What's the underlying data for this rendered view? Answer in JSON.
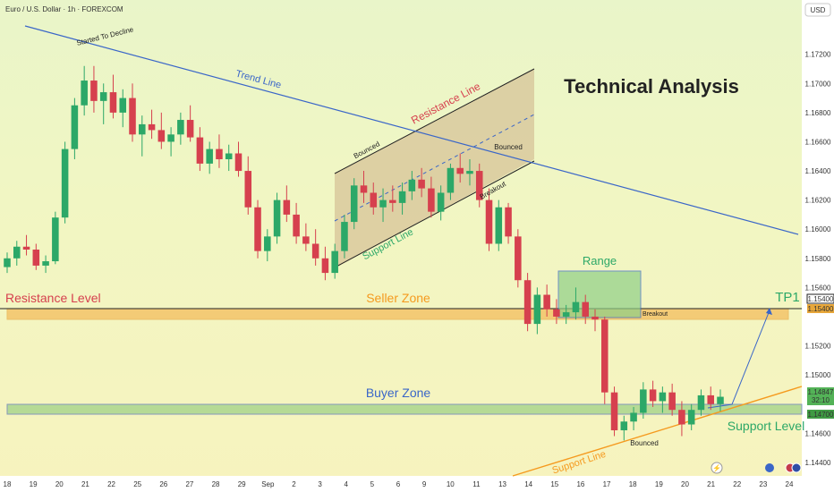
{
  "chart_data": {
    "type": "candlestick",
    "symbol_header": "Euro / U.S. Dollar · 1h · FOREXCOM",
    "currency": "USD",
    "title": "Technical Analysis",
    "y_ticks": [
      "1.17200",
      "1.17000",
      "1.16800",
      "1.16600",
      "1.16400",
      "1.16200",
      "1.16000",
      "1.15800",
      "1.15600",
      "1.15200",
      "1.15000",
      "1.14600",
      "1.14400"
    ],
    "x_ticks": [
      "18",
      "19",
      "20",
      "21",
      "22",
      "25",
      "26",
      "27",
      "28",
      "29",
      "Sep",
      "2",
      "3",
      "4",
      "5",
      "6",
      "9",
      "10",
      "11",
      "13",
      "14",
      "15",
      "16",
      "17",
      "18",
      "19",
      "20",
      "21",
      "22",
      "23",
      "24"
    ],
    "price_tags": {
      "tp_upper": "1.15400",
      "tp_lower": "1.15400",
      "last_price": "1.14847",
      "countdown": "32:10",
      "support": "1.14700"
    },
    "ylim": [
      1.1435,
      1.1745
    ],
    "colors": {
      "up": "#2ca868",
      "down": "#d6404e",
      "trend_line": "#3a66c8",
      "seller_zone": "#f3a93a",
      "buyer_zone": "#8cc97a",
      "channel": "#d3bc92",
      "range_box": "#8fcf87",
      "support_line": "#f59a1e",
      "tp_tag": "#e8a73a",
      "last_tag": "#53b257",
      "support_tag": "#3f9a43"
    },
    "annotations": {
      "started_to_decline": "Started To Decline",
      "trend_line": "Trend Line",
      "resistance_line": "Resistance Line",
      "support_line_channel": "Support Line",
      "bounced_1": "Bounced",
      "bounced_2": "Bounced",
      "breakout_1": "Breakout",
      "range": "Range",
      "resistance_level": "Resistance Level",
      "seller_zone": "Seller Zone",
      "tp1": "TP1",
      "breakout_2": "Breakout",
      "buyer_zone": "Buyer Zone",
      "support_level": "Support Level",
      "bounced_3": "Bounced",
      "support_line_bottom": "Support Line"
    },
    "series": [
      {
        "values": [
          [
            1.1574,
            1.1584,
            1.157,
            1.158
          ],
          [
            1.158,
            1.1592,
            1.1575,
            1.1588
          ],
          [
            1.1588,
            1.1596,
            1.1582,
            1.1586
          ],
          [
            1.1586,
            1.159,
            1.1572,
            1.1575
          ],
          [
            1.1575,
            1.1582,
            1.157,
            1.1578
          ],
          [
            1.1578,
            1.1612,
            1.1576,
            1.1608
          ],
          [
            1.1608,
            1.166,
            1.1604,
            1.1655
          ],
          [
            1.1655,
            1.169,
            1.1648,
            1.1685
          ],
          [
            1.1685,
            1.1712,
            1.1678,
            1.1702
          ],
          [
            1.1702,
            1.1712,
            1.168,
            1.1688
          ],
          [
            1.1688,
            1.17,
            1.1672,
            1.1694
          ],
          [
            1.1694,
            1.1706,
            1.1676,
            1.168
          ],
          [
            1.168,
            1.1696,
            1.167,
            1.169
          ],
          [
            1.169,
            1.17,
            1.166,
            1.1665
          ],
          [
            1.1665,
            1.1678,
            1.165,
            1.1672
          ],
          [
            1.1672,
            1.1682,
            1.1662,
            1.1668
          ],
          [
            1.1668,
            1.168,
            1.1655,
            1.166
          ],
          [
            1.166,
            1.167,
            1.165,
            1.1665
          ],
          [
            1.1665,
            1.168,
            1.1658,
            1.1675
          ],
          [
            1.1675,
            1.1685,
            1.166,
            1.1663
          ],
          [
            1.1663,
            1.167,
            1.164,
            1.1645
          ],
          [
            1.1645,
            1.166,
            1.1638,
            1.1655
          ],
          [
            1.1655,
            1.1665,
            1.1642,
            1.1648
          ],
          [
            1.1648,
            1.1658,
            1.164,
            1.1652
          ],
          [
            1.1652,
            1.166,
            1.1636,
            1.164
          ],
          [
            1.164,
            1.165,
            1.161,
            1.1615
          ],
          [
            1.1615,
            1.162,
            1.158,
            1.1585
          ],
          [
            1.1585,
            1.16,
            1.1578,
            1.1595
          ],
          [
            1.1595,
            1.1625,
            1.159,
            1.162
          ],
          [
            1.162,
            1.163,
            1.1605,
            1.161
          ],
          [
            1.161,
            1.1618,
            1.159,
            1.1595
          ],
          [
            1.1595,
            1.1604,
            1.1585,
            1.159
          ],
          [
            1.159,
            1.16,
            1.1575,
            1.158
          ],
          [
            1.158,
            1.1588,
            1.1565,
            1.157
          ],
          [
            1.157,
            1.159,
            1.1566,
            1.1585
          ],
          [
            1.1585,
            1.161,
            1.158,
            1.1605
          ],
          [
            1.1605,
            1.1635,
            1.16,
            1.163
          ],
          [
            1.163,
            1.164,
            1.1618,
            1.1625
          ],
          [
            1.1625,
            1.1632,
            1.161,
            1.1615
          ],
          [
            1.1615,
            1.1628,
            1.1605,
            1.162
          ],
          [
            1.162,
            1.163,
            1.1612,
            1.1618
          ],
          [
            1.1618,
            1.1632,
            1.161,
            1.1626
          ],
          [
            1.1626,
            1.164,
            1.162,
            1.1634
          ],
          [
            1.1634,
            1.1642,
            1.1622,
            1.1628
          ],
          [
            1.1628,
            1.1636,
            1.1608,
            1.1612
          ],
          [
            1.1612,
            1.163,
            1.1606,
            1.1625
          ],
          [
            1.1625,
            1.1645,
            1.162,
            1.1642
          ],
          [
            1.1642,
            1.1652,
            1.1632,
            1.1638
          ],
          [
            1.1638,
            1.1648,
            1.163,
            1.164
          ],
          [
            1.164,
            1.1645,
            1.1615,
            1.162
          ],
          [
            1.162,
            1.1628,
            1.1585,
            1.159
          ],
          [
            1.159,
            1.162,
            1.1585,
            1.1615
          ],
          [
            1.1615,
            1.1618,
            1.159,
            1.1595
          ],
          [
            1.1595,
            1.16,
            1.156,
            1.1565
          ],
          [
            1.1565,
            1.157,
            1.153,
            1.1535
          ],
          [
            1.1535,
            1.156,
            1.1528,
            1.1555
          ],
          [
            1.1555,
            1.1562,
            1.154,
            1.1545
          ],
          [
            1.1545,
            1.1552,
            1.1535,
            1.154
          ],
          [
            1.154,
            1.1548,
            1.1535,
            1.1543
          ],
          [
            1.1543,
            1.156,
            1.1538,
            1.155
          ],
          [
            1.155,
            1.1555,
            1.1535,
            1.154
          ],
          [
            1.154,
            1.1545,
            1.153,
            1.1538
          ],
          [
            1.1538,
            1.154,
            1.148,
            1.1488
          ],
          [
            1.1488,
            1.1492,
            1.1458,
            1.1462
          ],
          [
            1.1462,
            1.1472,
            1.1455,
            1.1468
          ],
          [
            1.1468,
            1.1478,
            1.1462,
            1.1474
          ],
          [
            1.1474,
            1.1495,
            1.147,
            1.149
          ],
          [
            1.149,
            1.1496,
            1.1478,
            1.1482
          ],
          [
            1.1482,
            1.1492,
            1.1474,
            1.1488
          ],
          [
            1.1488,
            1.1494,
            1.1472,
            1.1476
          ],
          [
            1.1476,
            1.1482,
            1.1458,
            1.1466
          ],
          [
            1.1466,
            1.148,
            1.1462,
            1.1476
          ],
          [
            1.1476,
            1.149,
            1.1472,
            1.1486
          ],
          [
            1.1486,
            1.1492,
            1.1476,
            1.148
          ],
          [
            1.148,
            1.149,
            1.1475,
            1.1485
          ]
        ]
      }
    ]
  }
}
